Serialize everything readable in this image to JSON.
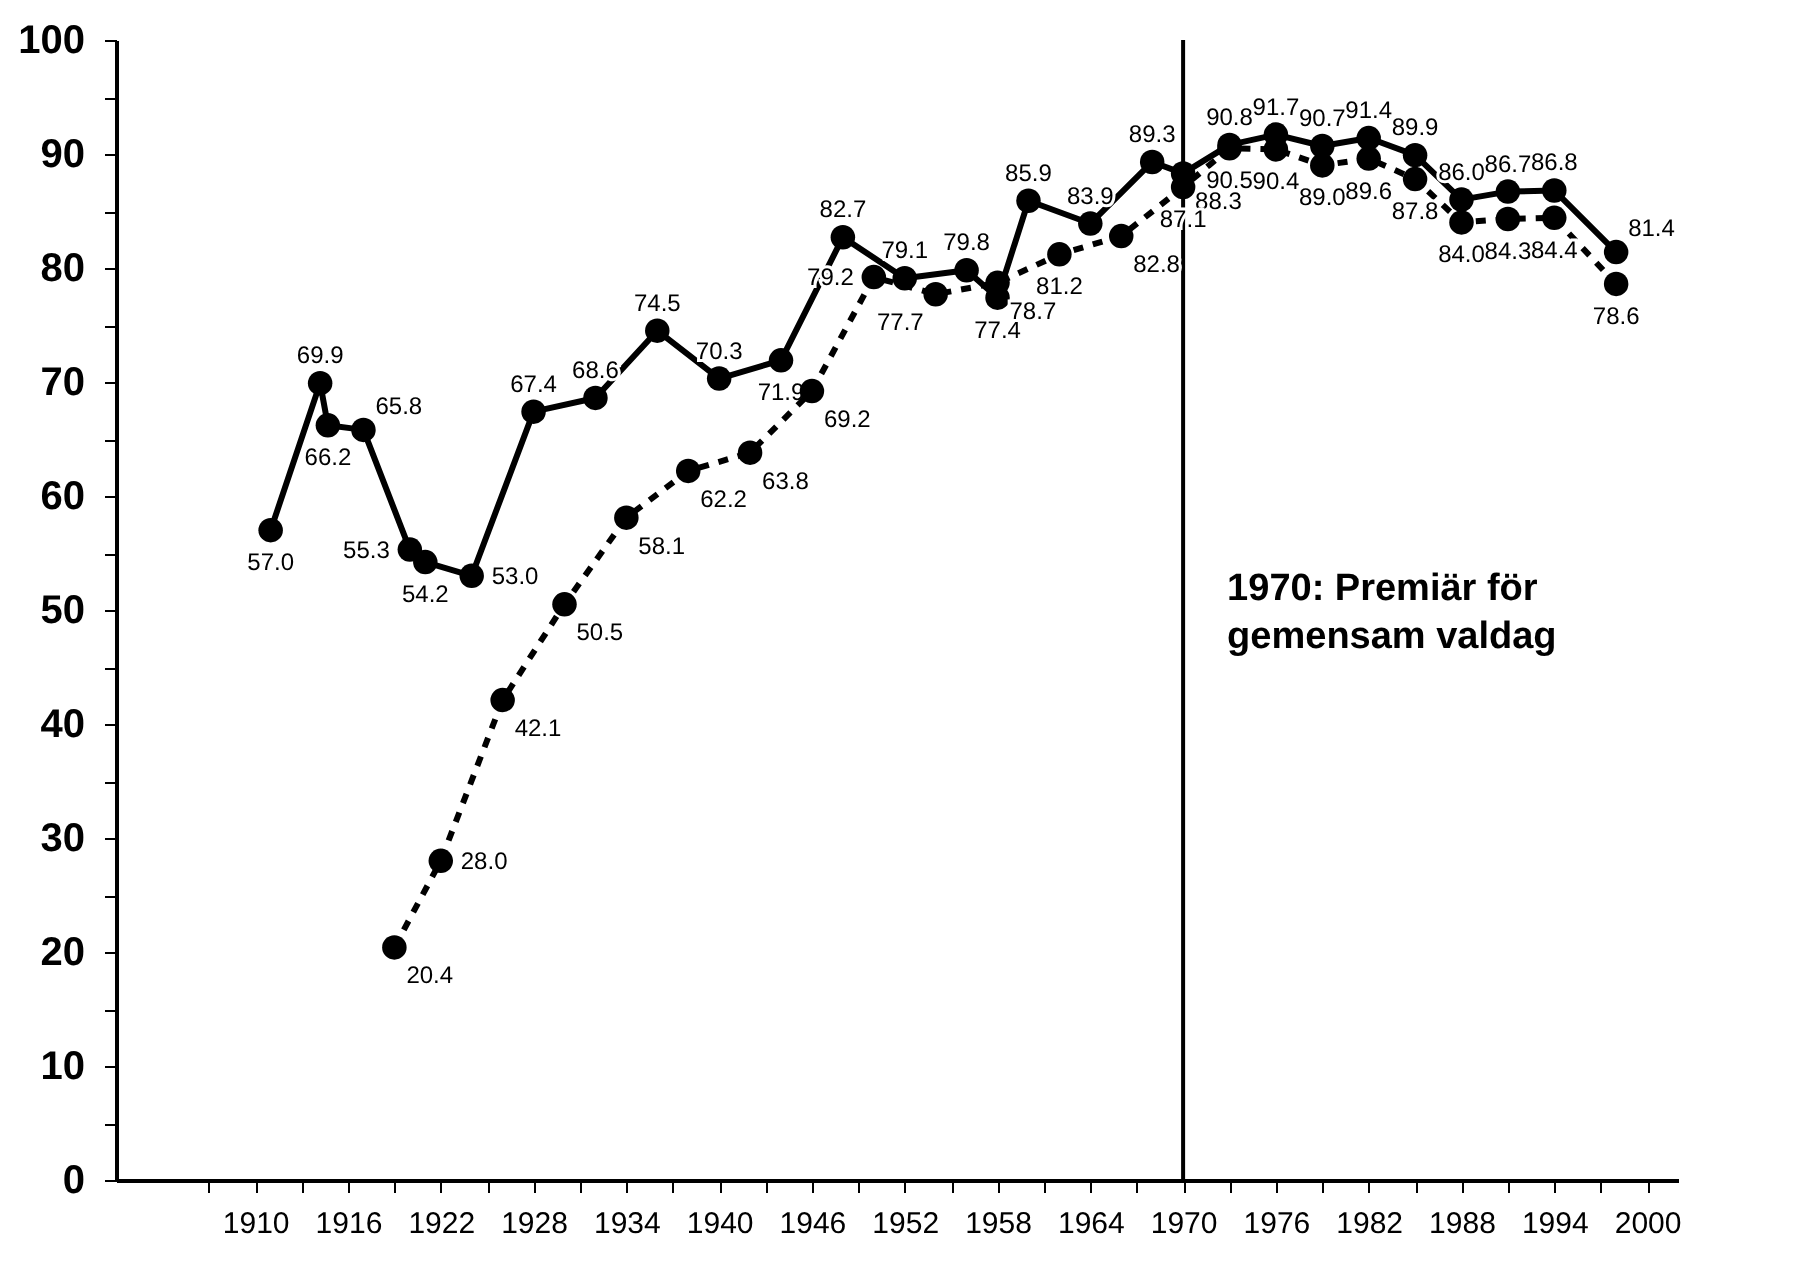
{
  "chart_data": {
    "type": "line",
    "marker": "circle",
    "grid": false,
    "legend": false,
    "xlim": [
      1901,
      2002
    ],
    "xticks": [
      {
        "value": 1907,
        "label": null
      },
      1910,
      {
        "value": 1913,
        "label": null
      },
      1916,
      {
        "value": 1919,
        "label": null
      },
      1922,
      {
        "value": 1925,
        "label": null
      },
      1928,
      {
        "value": 1931,
        "label": null
      },
      1934,
      {
        "value": 1937,
        "label": null
      },
      1940,
      {
        "value": 1943,
        "label": null
      },
      1946,
      {
        "value": 1949,
        "label": null
      },
      1952,
      {
        "value": 1955,
        "label": null
      },
      1958,
      {
        "value": 1961,
        "label": null
      },
      1964,
      {
        "value": 1967,
        "label": null
      },
      1970,
      {
        "value": 1973,
        "label": null
      },
      1976,
      {
        "value": 1979,
        "label": null
      },
      1982,
      {
        "value": 1985,
        "label": null
      },
      1988,
      {
        "value": 1991,
        "label": null
      },
      1994,
      {
        "value": 1997,
        "label": null
      },
      2000
    ],
    "ylim": [
      0,
      100
    ],
    "yticks": [
      0,
      {
        "value": 5,
        "label": null
      },
      10,
      {
        "value": 15,
        "label": null
      },
      20,
      {
        "value": 25,
        "label": null
      },
      30,
      {
        "value": 35,
        "label": null
      },
      40,
      {
        "value": 45,
        "label": null
      },
      50,
      {
        "value": 55,
        "label": null
      },
      60,
      {
        "value": 65,
        "label": null
      },
      70,
      {
        "value": 75,
        "label": null
      },
      80,
      {
        "value": 85,
        "label": null
      },
      90,
      {
        "value": 95,
        "label": null
      },
      100
    ],
    "ref_lines": [
      {
        "axis": "x",
        "value": 1970,
        "label": "1970: Premiär för\ngemensam valdag",
        "color": "#000000",
        "line_style": "solid"
      }
    ],
    "series": [
      {
        "color": "#000000",
        "line_style": "solid",
        "x": [
          1911,
          1914.2,
          1914.7,
          1917,
          1920,
          1921,
          1924,
          1928,
          1932,
          1936,
          1940,
          1944,
          1948,
          1952,
          1956,
          1958,
          1960,
          1964,
          1968,
          1970,
          1973,
          1976,
          1979,
          1982,
          1985,
          1988,
          1991,
          1994,
          1998
        ],
        "values": [
          57.0,
          69.9,
          66.2,
          65.8,
          55.3,
          54.2,
          53.0,
          67.4,
          68.6,
          74.5,
          70.3,
          71.9,
          82.7,
          79.1,
          79.8,
          77.4,
          85.9,
          83.9,
          89.3,
          88.3,
          90.8,
          91.7,
          90.7,
          91.4,
          89.9,
          86.0,
          86.7,
          86.8,
          81.4
        ],
        "value_labels": [
          "57.0",
          "69.9",
          "66.2",
          "65.8",
          "55.3",
          "54.2",
          "53.0",
          "67.4",
          "68.6",
          "74.5",
          "70.3",
          "71.9",
          "82.7",
          "79.1",
          "79.8",
          "77.4",
          "85.9",
          "83.9",
          "89.3",
          "88.3",
          "90.8",
          "91.7",
          "90.7",
          "91.4",
          "89.9",
          "86.0",
          "86.7",
          "86.8",
          "81.4"
        ]
      },
      {
        "color": "#000000",
        "line_style": "dashed",
        "x": [
          1919,
          1922,
          1926,
          1930,
          1934,
          1938,
          1942,
          1946,
          1950,
          1954,
          1958,
          1962,
          1966,
          1970,
          1973,
          1976,
          1979,
          1982,
          1985,
          1988,
          1991,
          1994,
          1998
        ],
        "values": [
          20.4,
          28.0,
          42.1,
          50.5,
          58.1,
          62.2,
          63.8,
          69.2,
          79.2,
          77.7,
          78.7,
          81.2,
          82.8,
          87.1,
          90.5,
          90.4,
          89.0,
          89.6,
          87.8,
          84.0,
          84.3,
          84.4,
          78.6
        ],
        "value_labels": [
          "20.4",
          "28.0",
          "42.1",
          "50.5",
          "58.1",
          "62.2",
          "63.8",
          "69.2",
          "79.2",
          "77.7",
          "78.7",
          "81.2",
          "82.8",
          "87.1",
          "90.5",
          "90.4",
          "89.0",
          "89.6",
          "87.8",
          "84.0",
          "84.3",
          "84.4",
          "78.6"
        ]
      }
    ]
  }
}
